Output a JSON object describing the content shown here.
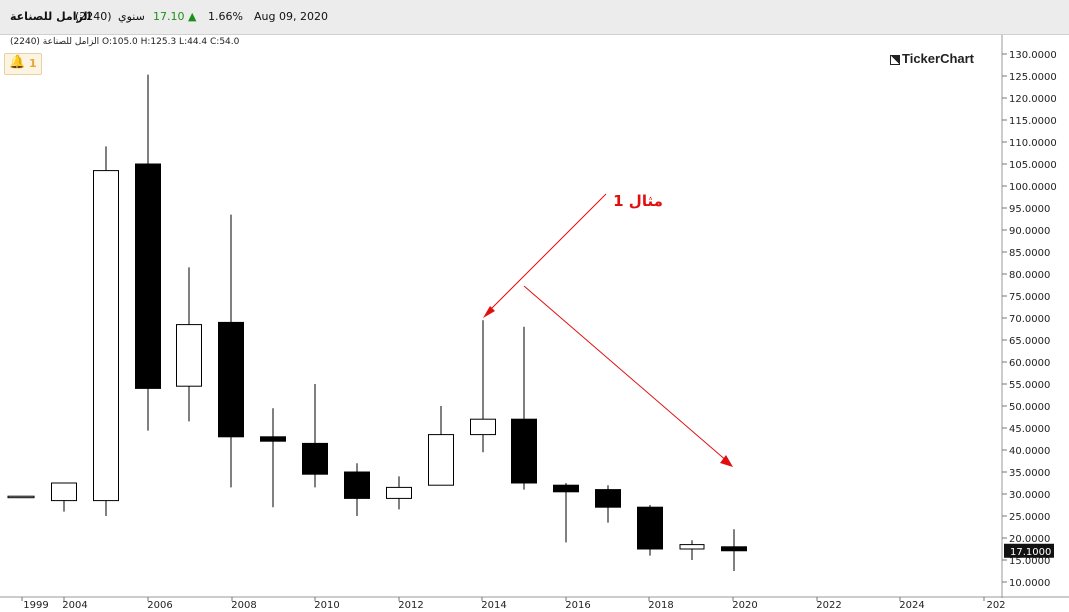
{
  "header": {
    "stock_name": "الزامل للصناعة",
    "stock_code": "(2240)",
    "period": "سنوي",
    "last_price": "17.10",
    "change_pct": "1.66%",
    "date": "Aug 09, 2020"
  },
  "ohlc_label": "الزامل للصناعة (2240) O:105.0 H:125.3 L:44.4 C:54.0",
  "alerts": {
    "count": "1"
  },
  "brand": "TickerChart",
  "annotation": {
    "text": "مثال 1",
    "color": "#e01010"
  },
  "colors": {
    "up_fill": "#ffffff",
    "down_fill": "#000000",
    "wick": "#000000",
    "price_tag": "#111111"
  },
  "chart_data": {
    "type": "candlestick",
    "y_axis": {
      "min": 10,
      "max": 130,
      "step": 5,
      "position": "right",
      "decimals": 4
    },
    "x_axis": {
      "tick_labels": [
        "1999",
        "2004",
        "2006",
        "2008",
        "2010",
        "2012",
        "2014",
        "2016",
        "2018",
        "2020",
        "2022",
        "2024",
        "202"
      ]
    },
    "current_price": {
      "value": 17.1,
      "label": "17.1000"
    },
    "candles": [
      {
        "year": "1999",
        "open": 29.5,
        "high": 29.5,
        "low": 29.5,
        "close": 29.5
      },
      {
        "year": "2004",
        "open": 28.5,
        "high": 32.5,
        "low": 26.0,
        "close": 32.5
      },
      {
        "year": "2005",
        "open": 28.5,
        "high": 109.0,
        "low": 25.0,
        "close": 103.5
      },
      {
        "year": "2006",
        "open": 105.0,
        "high": 125.3,
        "low": 44.4,
        "close": 54.0
      },
      {
        "year": "2007",
        "open": 54.5,
        "high": 81.5,
        "low": 46.5,
        "close": 68.5
      },
      {
        "year": "2008",
        "open": 69.0,
        "high": 93.5,
        "low": 31.5,
        "close": 43.0
      },
      {
        "year": "2009",
        "open": 43.0,
        "high": 49.5,
        "low": 27.0,
        "close": 42.0
      },
      {
        "year": "2010",
        "open": 41.5,
        "high": 55.0,
        "low": 31.5,
        "close": 34.5
      },
      {
        "year": "2011",
        "open": 35.0,
        "high": 37.0,
        "low": 25.0,
        "close": 29.0
      },
      {
        "year": "2012",
        "open": 29.0,
        "high": 34.0,
        "low": 26.5,
        "close": 31.5
      },
      {
        "year": "2013",
        "open": 32.0,
        "high": 50.0,
        "low": 32.0,
        "close": 43.5
      },
      {
        "year": "2014",
        "open": 43.5,
        "high": 69.5,
        "low": 39.5,
        "close": 47.0
      },
      {
        "year": "2015",
        "open": 47.0,
        "high": 68.0,
        "low": 31.0,
        "close": 32.5
      },
      {
        "year": "2016",
        "open": 32.0,
        "high": 32.5,
        "low": 19.0,
        "close": 30.5
      },
      {
        "year": "2017",
        "open": 31.0,
        "high": 32.0,
        "low": 23.5,
        "close": 27.0
      },
      {
        "year": "2018",
        "open": 27.0,
        "high": 27.5,
        "low": 16.0,
        "close": 17.5
      },
      {
        "year": "2019",
        "open": 17.5,
        "high": 19.5,
        "low": 15.0,
        "close": 18.5
      },
      {
        "year": "2020",
        "open": 18.0,
        "high": 22.0,
        "low": 12.5,
        "close": 17.1
      }
    ]
  }
}
